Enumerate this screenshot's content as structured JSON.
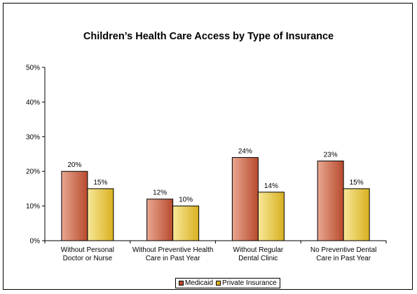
{
  "chart_data": {
    "type": "bar",
    "title": "Children’s Health Care Access by Type of Insurance",
    "categories": [
      [
        "Without Personal",
        "Doctor or Nurse"
      ],
      [
        "Without Preventive Health",
        "Care in Past Year"
      ],
      [
        "Without Regular",
        "Dental Clinic"
      ],
      [
        "No Preventive Dental",
        "Care in Past Year"
      ]
    ],
    "series": [
      {
        "name": "Medicaid",
        "values": [
          20,
          12,
          24,
          23
        ],
        "labels": [
          "20%",
          "12%",
          "24%",
          "23%"
        ],
        "color": "#b84a2e",
        "light": "#e8a890"
      },
      {
        "name": "Private Insurance",
        "values": [
          15,
          10,
          14,
          15
        ],
        "labels": [
          "15%",
          "10%",
          "14%",
          "15%"
        ],
        "color": "#d8b020",
        "light": "#f8e898"
      }
    ],
    "ylim": [
      0,
      50
    ],
    "yticks": [
      "0%",
      "10%",
      "20%",
      "30%",
      "40%",
      "50%"
    ],
    "xlabel": "",
    "ylabel": "",
    "grid": false,
    "legend": "bottom"
  }
}
